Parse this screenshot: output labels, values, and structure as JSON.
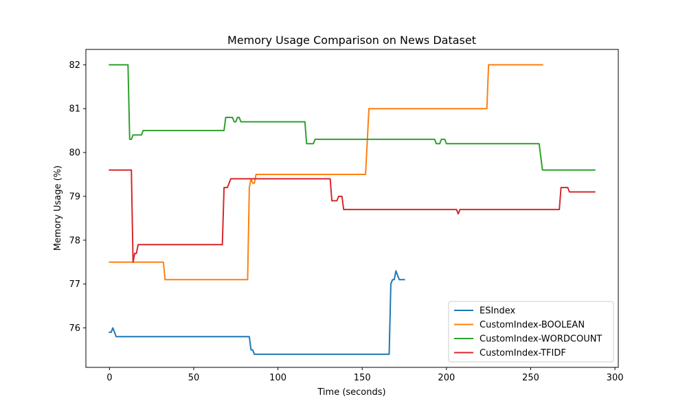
{
  "chart_data": {
    "type": "line",
    "title": "Memory Usage Comparison on News Dataset",
    "xlabel": "Time (seconds)",
    "ylabel": "Memory Usage (%)",
    "xlim": [
      -14,
      302
    ],
    "ylim": [
      75.1,
      82.35
    ],
    "xticks": [
      0,
      50,
      100,
      150,
      200,
      250,
      300
    ],
    "yticks": [
      76,
      77,
      78,
      79,
      80,
      81,
      82
    ],
    "grid": false,
    "legend_position": "lower-right",
    "series": [
      {
        "name": "ESIndex",
        "color": "#1f77b4",
        "points": [
          [
            0,
            75.9
          ],
          [
            1,
            75.9
          ],
          [
            2,
            76.0
          ],
          [
            3,
            75.9
          ],
          [
            4,
            75.8
          ],
          [
            83,
            75.8
          ],
          [
            84,
            75.5
          ],
          [
            85,
            75.5
          ],
          [
            86,
            75.4
          ],
          [
            166,
            75.4
          ],
          [
            167,
            77.0
          ],
          [
            168,
            77.1
          ],
          [
            169,
            77.1
          ],
          [
            170,
            77.3
          ],
          [
            171,
            77.2
          ],
          [
            172,
            77.1
          ],
          [
            175,
            77.1
          ]
        ]
      },
      {
        "name": "CustomIndex-BOOLEAN",
        "color": "#ff7f0e",
        "points": [
          [
            0,
            77.5
          ],
          [
            32,
            77.5
          ],
          [
            33,
            77.1
          ],
          [
            82,
            77.1
          ],
          [
            83,
            79.2
          ],
          [
            84,
            79.4
          ],
          [
            85,
            79.3
          ],
          [
            86,
            79.3
          ],
          [
            87,
            79.5
          ],
          [
            152,
            79.5
          ],
          [
            154,
            81.0
          ],
          [
            224,
            81.0
          ],
          [
            225,
            82.0
          ],
          [
            257,
            82.0
          ]
        ]
      },
      {
        "name": "CustomIndex-WORDCOUNT",
        "color": "#2ca02c",
        "points": [
          [
            0,
            82.0
          ],
          [
            11,
            82.0
          ],
          [
            12,
            80.3
          ],
          [
            13,
            80.3
          ],
          [
            14,
            80.4
          ],
          [
            19,
            80.4
          ],
          [
            20,
            80.5
          ],
          [
            68,
            80.5
          ],
          [
            69,
            80.8
          ],
          [
            73,
            80.8
          ],
          [
            74,
            80.7
          ],
          [
            75,
            80.7
          ],
          [
            76,
            80.8
          ],
          [
            77,
            80.8
          ],
          [
            78,
            80.7
          ],
          [
            116,
            80.7
          ],
          [
            117,
            80.2
          ],
          [
            121,
            80.2
          ],
          [
            122,
            80.3
          ],
          [
            193,
            80.3
          ],
          [
            194,
            80.2
          ],
          [
            196,
            80.2
          ],
          [
            197,
            80.3
          ],
          [
            199,
            80.3
          ],
          [
            200,
            80.2
          ],
          [
            255,
            80.2
          ],
          [
            257,
            79.6
          ],
          [
            288,
            79.6
          ]
        ]
      },
      {
        "name": "CustomIndex-TFIDF",
        "color": "#d62728",
        "points": [
          [
            0,
            79.6
          ],
          [
            13,
            79.6
          ],
          [
            14,
            77.5
          ],
          [
            15,
            77.7
          ],
          [
            16,
            77.7
          ],
          [
            17,
            77.9
          ],
          [
            67,
            77.9
          ],
          [
            68,
            79.2
          ],
          [
            70,
            79.2
          ],
          [
            72,
            79.4
          ],
          [
            131,
            79.4
          ],
          [
            132,
            78.9
          ],
          [
            135,
            78.9
          ],
          [
            136,
            79.0
          ],
          [
            138,
            79.0
          ],
          [
            139,
            78.7
          ],
          [
            206,
            78.7
          ],
          [
            207,
            78.6
          ],
          [
            208,
            78.7
          ],
          [
            267,
            78.7
          ],
          [
            268,
            79.2
          ],
          [
            272,
            79.2
          ],
          [
            273,
            79.1
          ],
          [
            288,
            79.1
          ]
        ]
      }
    ]
  }
}
